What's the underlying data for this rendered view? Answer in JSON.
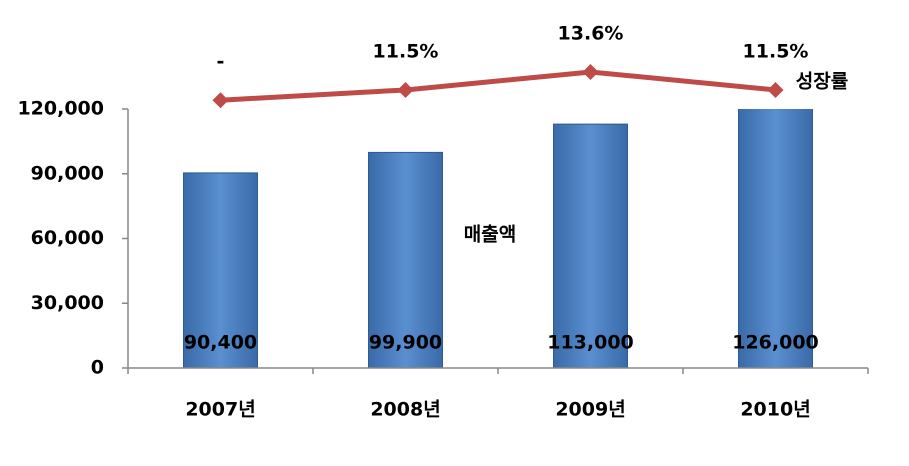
{
  "chart_data": {
    "type": "bar-line",
    "categories": [
      "2007년",
      "2008년",
      "2009년",
      "2010년"
    ],
    "ylim": [
      0,
      120000
    ],
    "yticks": [
      0,
      {
        "value": 30000,
        "label": "30,000"
      },
      {
        "value": 60000,
        "label": "60,000"
      },
      {
        "value": 90000,
        "label": "90,000"
      },
      {
        "value": 120000,
        "label": "120,000"
      }
    ],
    "y2lim": [
      -21,
      15
    ],
    "series": [
      {
        "name": "매출액",
        "type": "bar",
        "color": "#4a7ebb",
        "values": [
          90400,
          99900,
          113000,
          126000
        ],
        "value_labels": [
          "90,400",
          "99,900",
          "113,000",
          "126,000"
        ]
      },
      {
        "name": "성장률",
        "type": "line",
        "axis": "y2",
        "color": "#be4b48",
        "values": [
          10.3,
          11.5,
          13.6,
          11.5
        ],
        "value_labels": [
          "-",
          "11.5%",
          "13.6%",
          "11.5%"
        ]
      }
    ]
  }
}
